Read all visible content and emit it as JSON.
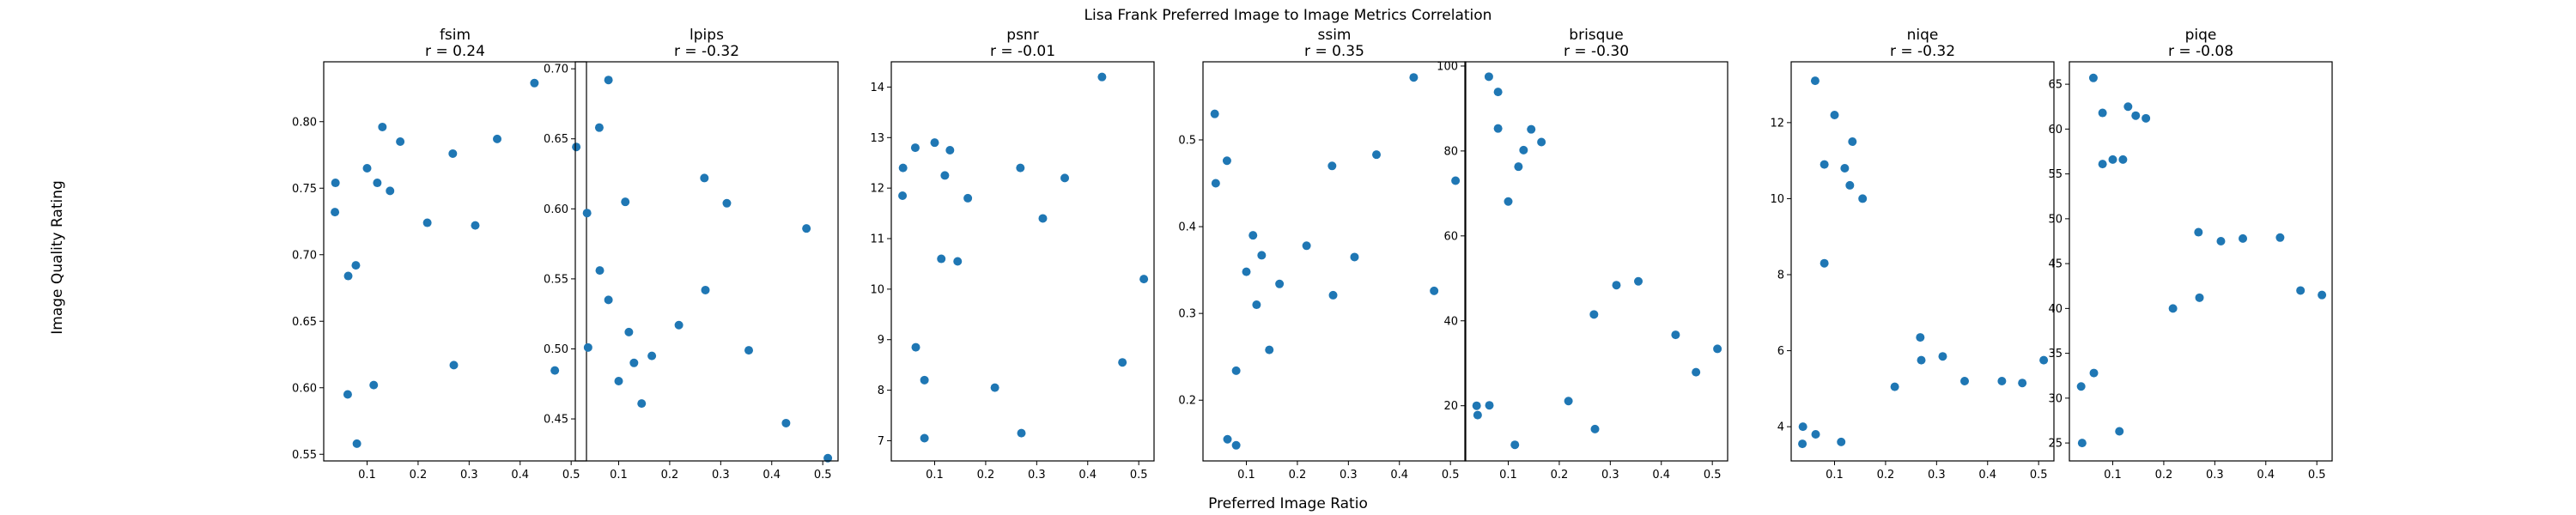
{
  "figure": {
    "suptitle": "Lisa Frank Preferred Image to Image Metrics Correlation",
    "xlabel": "Preferred Image Ratio",
    "ylabel": "Image Quality Rating",
    "point_color": "#1f77b4"
  },
  "chart_data": [
    {
      "type": "scatter",
      "metric": "fsim",
      "subtitle": "r = 0.24",
      "xlim": [
        0.015,
        0.53
      ],
      "ylim": [
        0.545,
        0.845
      ],
      "xticks": [
        0.1,
        0.2,
        0.3,
        0.4,
        0.5
      ],
      "xtick_labels": [
        "0.1",
        "0.2",
        "0.3",
        "0.4",
        "0.5"
      ],
      "yticks": [
        0.55,
        0.6,
        0.65,
        0.7,
        0.75,
        0.8
      ],
      "ytick_labels": [
        "0.55",
        "0.60",
        "0.65",
        "0.70",
        "0.75",
        "0.80"
      ],
      "points": [
        [
          0.038,
          0.754
        ],
        [
          0.037,
          0.732
        ],
        [
          0.063,
          0.684
        ],
        [
          0.062,
          0.595
        ],
        [
          0.078,
          0.692
        ],
        [
          0.08,
          0.558
        ],
        [
          0.1,
          0.765
        ],
        [
          0.113,
          0.602
        ],
        [
          0.12,
          0.754
        ],
        [
          0.13,
          0.796
        ],
        [
          0.145,
          0.748
        ],
        [
          0.165,
          0.785
        ],
        [
          0.218,
          0.724
        ],
        [
          0.268,
          0.776
        ],
        [
          0.27,
          0.617
        ],
        [
          0.312,
          0.722
        ],
        [
          0.355,
          0.787
        ],
        [
          0.428,
          0.829
        ],
        [
          0.468,
          0.613
        ],
        [
          0.51,
          0.781
        ]
      ]
    },
    {
      "type": "scatter",
      "metric": "lpips",
      "subtitle": "r = -0.32",
      "xlim": [
        0.015,
        0.53
      ],
      "ylim": [
        0.42,
        0.705
      ],
      "xticks": [
        0.1,
        0.2,
        0.3,
        0.4,
        0.5
      ],
      "xtick_labels": [
        "0.1",
        "0.2",
        "0.3",
        "0.4",
        "0.5"
      ],
      "yticks": [
        0.45,
        0.5,
        0.55,
        0.6,
        0.65,
        0.7
      ],
      "ytick_labels": [
        "0.45",
        "0.50",
        "0.55",
        "0.60",
        "0.65",
        "0.70"
      ],
      "points": [
        [
          0.038,
          0.597
        ],
        [
          0.04,
          0.501
        ],
        [
          0.062,
          0.658
        ],
        [
          0.063,
          0.556
        ],
        [
          0.08,
          0.692
        ],
        [
          0.08,
          0.535
        ],
        [
          0.1,
          0.477
        ],
        [
          0.113,
          0.605
        ],
        [
          0.12,
          0.512
        ],
        [
          0.13,
          0.49
        ],
        [
          0.145,
          0.461
        ],
        [
          0.165,
          0.495
        ],
        [
          0.218,
          0.517
        ],
        [
          0.268,
          0.622
        ],
        [
          0.27,
          0.542
        ],
        [
          0.312,
          0.604
        ],
        [
          0.355,
          0.499
        ],
        [
          0.428,
          0.447
        ],
        [
          0.468,
          0.586
        ],
        [
          0.51,
          0.422
        ]
      ]
    },
    {
      "type": "scatter",
      "metric": "psnr",
      "subtitle": "r = -0.01",
      "xlim": [
        0.015,
        0.53
      ],
      "ylim": [
        6.6,
        14.5
      ],
      "xticks": [
        0.1,
        0.2,
        0.3,
        0.4,
        0.5
      ],
      "xtick_labels": [
        "0.1",
        "0.2",
        "0.3",
        "0.4",
        "0.5"
      ],
      "yticks": [
        7,
        8,
        9,
        10,
        11,
        12,
        13,
        14
      ],
      "ytick_labels": [
        "7",
        "8",
        "9",
        "10",
        "11",
        "12",
        "13",
        "14"
      ],
      "points": [
        [
          0.038,
          12.4
        ],
        [
          0.037,
          11.85
        ],
        [
          0.062,
          12.8
        ],
        [
          0.063,
          8.85
        ],
        [
          0.08,
          8.2
        ],
        [
          0.08,
          7.05
        ],
        [
          0.1,
          12.9
        ],
        [
          0.113,
          10.6
        ],
        [
          0.12,
          12.25
        ],
        [
          0.13,
          12.75
        ],
        [
          0.145,
          10.55
        ],
        [
          0.165,
          11.8
        ],
        [
          0.218,
          8.05
        ],
        [
          0.268,
          12.4
        ],
        [
          0.27,
          7.15
        ],
        [
          0.312,
          11.4
        ],
        [
          0.355,
          12.2
        ],
        [
          0.428,
          14.2
        ],
        [
          0.468,
          8.55
        ],
        [
          0.51,
          10.2
        ]
      ]
    },
    {
      "type": "scatter",
      "metric": "ssim",
      "subtitle": "r = 0.35",
      "xlim": [
        0.015,
        0.53
      ],
      "ylim": [
        0.13,
        0.59
      ],
      "xticks": [
        0.1,
        0.2,
        0.3,
        0.4,
        0.5
      ],
      "xtick_labels": [
        "0.1",
        "0.2",
        "0.3",
        "0.4",
        "0.5"
      ],
      "yticks": [
        0.2,
        0.3,
        0.4,
        0.5
      ],
      "ytick_labels": [
        "0.2",
        "0.3",
        "0.4",
        "0.5"
      ],
      "points": [
        [
          0.038,
          0.53
        ],
        [
          0.04,
          0.45
        ],
        [
          0.062,
          0.476
        ],
        [
          0.063,
          0.155
        ],
        [
          0.08,
          0.234
        ],
        [
          0.08,
          0.148
        ],
        [
          0.1,
          0.348
        ],
        [
          0.113,
          0.39
        ],
        [
          0.12,
          0.31
        ],
        [
          0.13,
          0.367
        ],
        [
          0.145,
          0.258
        ],
        [
          0.165,
          0.334
        ],
        [
          0.218,
          0.378
        ],
        [
          0.268,
          0.47
        ],
        [
          0.27,
          0.321
        ],
        [
          0.312,
          0.365
        ],
        [
          0.355,
          0.483
        ],
        [
          0.428,
          0.572
        ],
        [
          0.468,
          0.326
        ],
        [
          0.51,
          0.453
        ]
      ]
    },
    {
      "type": "scatter",
      "metric": "brisque",
      "subtitle": "r = -0.30",
      "xlim": [
        0.015,
        0.53
      ],
      "ylim": [
        7.0,
        101.0
      ],
      "xticks": [
        0.1,
        0.2,
        0.3,
        0.4,
        0.5
      ],
      "xtick_labels": [
        "0.1",
        "0.2",
        "0.3",
        "0.4",
        "0.5"
      ],
      "yticks": [
        20,
        40,
        60,
        80,
        100
      ],
      "ytick_labels": [
        "20",
        "40",
        "60",
        "80",
        "100"
      ],
      "points": [
        [
          0.038,
          20.0
        ],
        [
          0.04,
          17.8
        ],
        [
          0.062,
          97.5
        ],
        [
          0.063,
          20.1
        ],
        [
          0.08,
          85.3
        ],
        [
          0.08,
          93.9
        ],
        [
          0.1,
          68.1
        ],
        [
          0.113,
          10.8
        ],
        [
          0.12,
          76.3
        ],
        [
          0.13,
          80.2
        ],
        [
          0.145,
          85.1
        ],
        [
          0.165,
          82.1
        ],
        [
          0.218,
          21.1
        ],
        [
          0.268,
          41.5
        ],
        [
          0.27,
          14.5
        ],
        [
          0.312,
          48.4
        ],
        [
          0.355,
          49.3
        ],
        [
          0.428,
          36.7
        ],
        [
          0.468,
          27.9
        ],
        [
          0.51,
          33.4
        ]
      ]
    },
    {
      "type": "scatter",
      "metric": "niqe",
      "subtitle": "r = -0.32",
      "xlim": [
        0.015,
        0.53
      ],
      "ylim": [
        3.1,
        13.6
      ],
      "xticks": [
        0.1,
        0.2,
        0.3,
        0.4,
        0.5
      ],
      "xtick_labels": [
        "0.1",
        "0.2",
        "0.3",
        "0.4",
        "0.5"
      ],
      "yticks": [
        4,
        6,
        8,
        10,
        12
      ],
      "ytick_labels": [
        "4",
        "6",
        "8",
        "10",
        "12"
      ],
      "points": [
        [
          0.038,
          4.0
        ],
        [
          0.037,
          3.55
        ],
        [
          0.062,
          13.1
        ],
        [
          0.063,
          3.8
        ],
        [
          0.08,
          10.9
        ],
        [
          0.08,
          8.3
        ],
        [
          0.1,
          12.2
        ],
        [
          0.113,
          3.6
        ],
        [
          0.12,
          10.8
        ],
        [
          0.13,
          10.35
        ],
        [
          0.135,
          11.5
        ],
        [
          0.155,
          10.0
        ],
        [
          0.218,
          5.05
        ],
        [
          0.268,
          6.35
        ],
        [
          0.27,
          5.75
        ],
        [
          0.312,
          5.85
        ],
        [
          0.355,
          5.2
        ],
        [
          0.428,
          5.2
        ],
        [
          0.468,
          5.15
        ],
        [
          0.51,
          5.75
        ]
      ]
    },
    {
      "type": "scatter",
      "metric": "piqe",
      "subtitle": "r = -0.08",
      "xlim": [
        0.015,
        0.53
      ],
      "ylim": [
        23.0,
        67.5
      ],
      "xticks": [
        0.1,
        0.2,
        0.3,
        0.4,
        0.5
      ],
      "xtick_labels": [
        "0.1",
        "0.2",
        "0.3",
        "0.4",
        "0.5"
      ],
      "yticks": [
        25,
        30,
        35,
        40,
        45,
        50,
        55,
        60,
        65
      ],
      "ytick_labels": [
        "25",
        "30",
        "35",
        "40",
        "45",
        "50",
        "55",
        "60",
        "65"
      ],
      "points": [
        [
          0.038,
          31.3
        ],
        [
          0.04,
          25.0
        ],
        [
          0.062,
          65.7
        ],
        [
          0.063,
          32.8
        ],
        [
          0.08,
          61.8
        ],
        [
          0.08,
          56.1
        ],
        [
          0.1,
          56.6
        ],
        [
          0.113,
          26.3
        ],
        [
          0.12,
          56.6
        ],
        [
          0.13,
          62.5
        ],
        [
          0.145,
          61.5
        ],
        [
          0.165,
          61.2
        ],
        [
          0.218,
          40.0
        ],
        [
          0.268,
          48.5
        ],
        [
          0.27,
          41.2
        ],
        [
          0.312,
          47.5
        ],
        [
          0.355,
          47.8
        ],
        [
          0.428,
          47.9
        ],
        [
          0.468,
          42.0
        ],
        [
          0.51,
          41.5
        ]
      ]
    }
  ]
}
